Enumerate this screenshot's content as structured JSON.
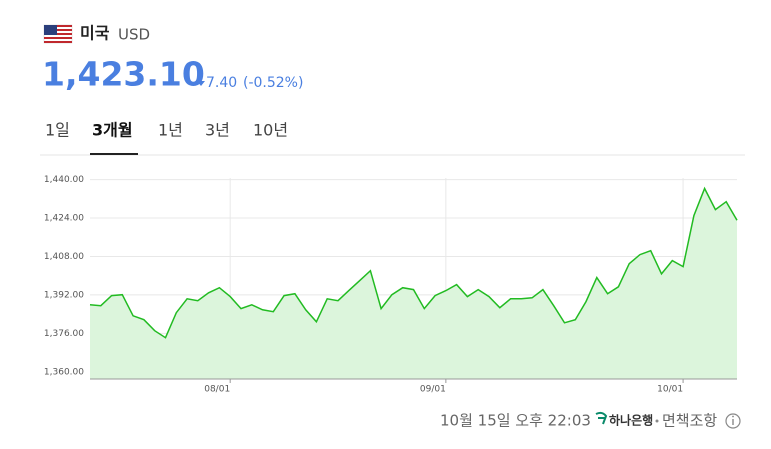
{
  "header": {
    "country": "미국",
    "currency": "USD",
    "price": "1,423.10",
    "change": "7.40",
    "change_pct": "(-0.52%)"
  },
  "tabs": [
    "1일",
    "3개월",
    "1년",
    "3년",
    "10년"
  ],
  "footer": {
    "timestamp": "10월 15일 오후 22:03",
    "bank": "하나은행",
    "disclaimer": "면책조항"
  },
  "chart_data": {
    "type": "area",
    "color": "#22bb22",
    "area_color": "#dcf5dc",
    "grid": true,
    "categories": [
      null,
      null,
      null,
      null,
      null,
      null,
      null,
      null,
      null,
      null,
      null,
      null,
      null,
      "08/01",
      null,
      null,
      null,
      null,
      null,
      null,
      null,
      null,
      null,
      null,
      null,
      null,
      null,
      null,
      null,
      null,
      null,
      null,
      null,
      "09/01",
      null,
      null,
      null,
      null,
      null,
      null,
      null,
      null,
      null,
      null,
      null,
      null,
      null,
      null,
      null,
      null,
      null,
      null,
      null,
      null,
      null,
      "10/01",
      null,
      null,
      null,
      null,
      null
    ],
    "values": [
      1387.9,
      1387.5,
      1391.7,
      1392.1,
      1383.3,
      1381.7,
      1377.1,
      1374.2,
      1384.6,
      1390.4,
      1389.6,
      1392.9,
      1395.0,
      1391.3,
      1386.3,
      1387.9,
      1385.8,
      1385.0,
      1391.7,
      1392.5,
      1385.8,
      1380.8,
      1390.4,
      1389.6,
      1393.8,
      1397.9,
      1402.1,
      1386.3,
      1392.1,
      1395.0,
      1394.2,
      1386.3,
      1391.7,
      1393.8,
      1396.3,
      1391.3,
      1394.2,
      1391.3,
      1386.7,
      1390.4,
      1390.4,
      1390.8,
      1394.2,
      1387.5,
      1380.4,
      1381.7,
      1389.2,
      1399.2,
      1392.5,
      1395.4,
      1405.0,
      1408.8,
      1410.4,
      1400.8,
      1406.3,
      1403.8,
      1425.0,
      1436.3,
      1427.5,
      1430.8,
      1423.1
    ],
    "ylim": [
      1357,
      1444
    ],
    "yticks": [
      {
        "value": 1360,
        "label": "1,360.00"
      },
      {
        "value": 1376,
        "label": "1,376.00"
      },
      {
        "value": 1392,
        "label": "1,392.00"
      },
      {
        "value": 1408,
        "label": "1,408.00"
      },
      {
        "value": 1424,
        "label": "1,424.00"
      },
      {
        "value": 1440,
        "label": "1,440.00"
      }
    ]
  }
}
